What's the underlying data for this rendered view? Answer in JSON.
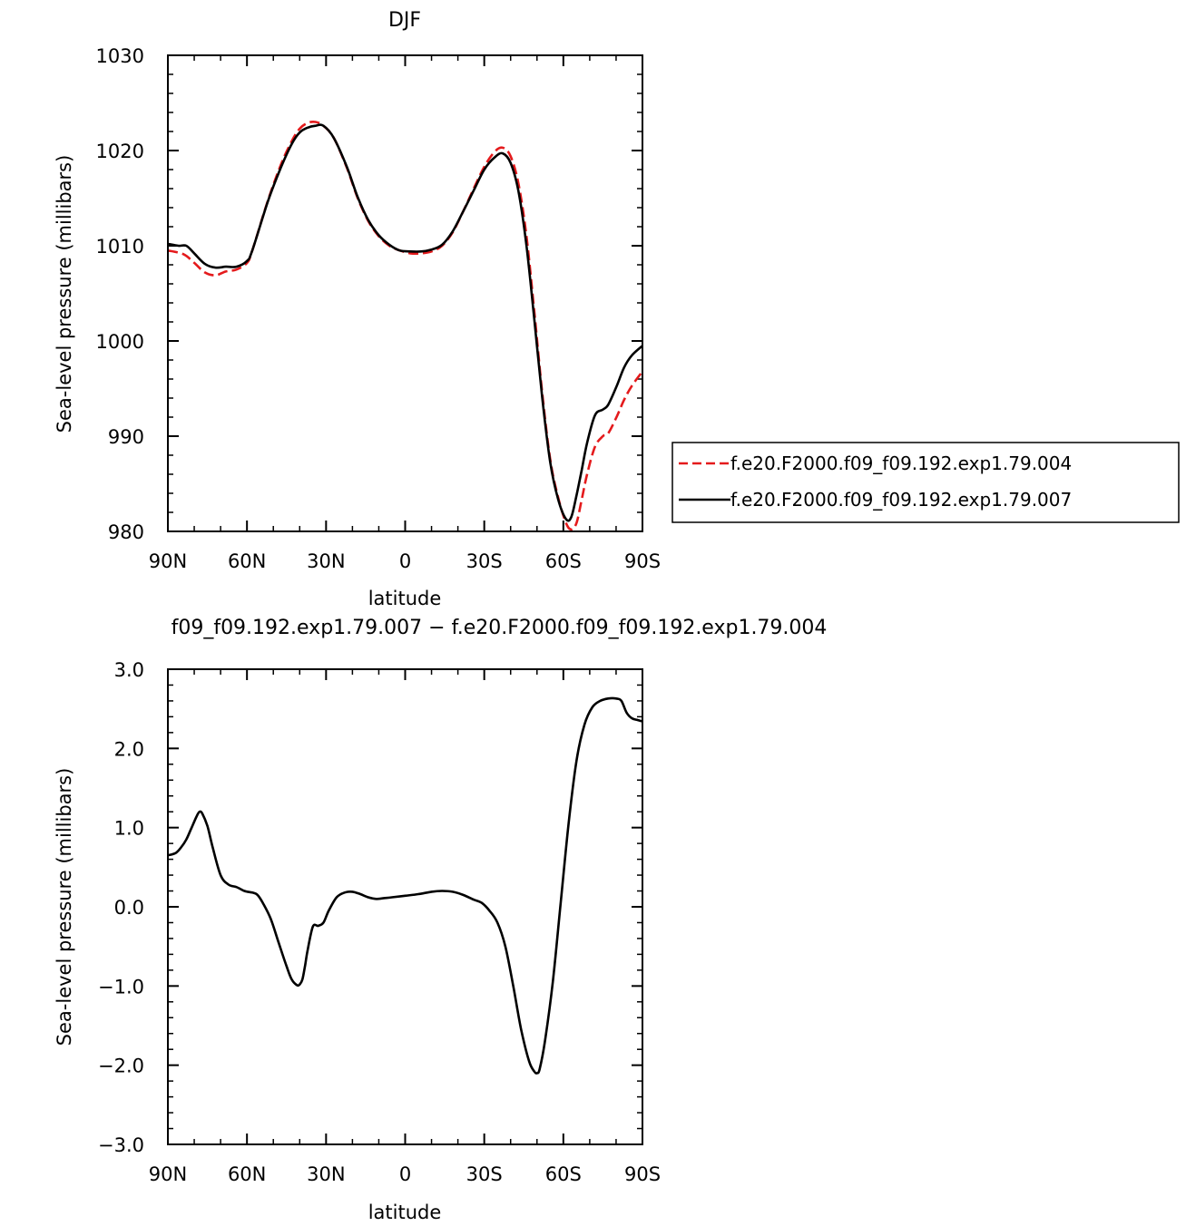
{
  "chart_data": [
    {
      "type": "line",
      "title": "DJF",
      "xlabel": "latitude",
      "ylabel": "Sea-level pressure (millibars)",
      "xlim": [
        90,
        -90
      ],
      "ylim": [
        980,
        1030
      ],
      "yticks": [
        980,
        990,
        1000,
        1010,
        1020,
        1030
      ],
      "ytick_labels": [
        "980",
        "990",
        "1000",
        "1010",
        "1020",
        "1030"
      ],
      "xticks": [
        90,
        60,
        30,
        0,
        -30,
        -60,
        -90
      ],
      "xtick_labels": [
        "90N",
        "60N",
        "30N",
        "0",
        "30S",
        "60S",
        "90S"
      ],
      "grid": false,
      "legend_position": "right",
      "series": [
        {
          "name": "f.e20.F2000.f09_f09.192.exp1.79.004",
          "color": "#e41a1c",
          "dash": "dashed",
          "x": [
            90,
            84,
            80,
            76,
            72,
            68,
            64,
            60,
            58,
            52,
            47,
            43,
            40,
            37,
            34,
            31,
            27,
            22,
            18,
            14,
            10,
            6,
            2,
            -2,
            -6,
            -10,
            -14,
            -18,
            -22,
            -26,
            -30,
            -34,
            -37,
            -40,
            -43,
            -46,
            -49,
            -52,
            -55,
            -58,
            -61,
            -63,
            -65,
            -67,
            -69,
            -72,
            -75,
            -77,
            -80,
            -83,
            -86,
            -90
          ],
          "y": [
            1009.5,
            1009.1,
            1008.2,
            1007.2,
            1006.9,
            1007.3,
            1007.5,
            1008.2,
            1009.5,
            1014.8,
            1018.6,
            1021.0,
            1022.3,
            1022.9,
            1023.0,
            1022.6,
            1021.3,
            1018.1,
            1015.0,
            1012.6,
            1011.0,
            1010.0,
            1009.5,
            1009.2,
            1009.2,
            1009.4,
            1010.0,
            1011.4,
            1013.6,
            1016.0,
            1018.3,
            1019.9,
            1020.3,
            1019.4,
            1016.5,
            1011.0,
            1003.0,
            994.5,
            987.6,
            983.6,
            980.9,
            980.2,
            980.9,
            983.4,
            986.0,
            988.9,
            990.0,
            990.3,
            991.9,
            993.8,
            995.3,
            996.8
          ]
        },
        {
          "name": "f.e20.F2000.f09_f09.192.exp1.79.007",
          "color": "#000000",
          "dash": "solid",
          "x": [
            90,
            86,
            83,
            80,
            76,
            72,
            68,
            64,
            60,
            58,
            52,
            47,
            43,
            40,
            37,
            34,
            31,
            27,
            22,
            18,
            14,
            10,
            6,
            2,
            -2,
            -6,
            -10,
            -14,
            -18,
            -22,
            -26,
            -30,
            -34,
            -37,
            -40,
            -43,
            -46,
            -49,
            -52,
            -55,
            -58,
            -61,
            -63,
            -65,
            -67,
            -69,
            -72,
            -75,
            -77,
            -80,
            -83,
            -86,
            -90
          ],
          "y": [
            1010.2,
            1010.0,
            1010.0,
            1009.2,
            1008.1,
            1007.7,
            1007.8,
            1007.8,
            1008.4,
            1009.5,
            1014.7,
            1018.3,
            1020.7,
            1021.9,
            1022.4,
            1022.6,
            1022.6,
            1021.3,
            1018.2,
            1015.1,
            1012.7,
            1011.1,
            1010.1,
            1009.5,
            1009.4,
            1009.4,
            1009.6,
            1010.1,
            1011.5,
            1013.6,
            1015.8,
            1018.0,
            1019.3,
            1019.7,
            1018.7,
            1015.7,
            1010.0,
            1002.2,
            994.0,
            987.3,
            983.4,
            981.3,
            981.5,
            983.8,
            986.5,
            989.3,
            992.2,
            992.8,
            993.3,
            995.1,
            997.2,
            998.5,
            999.5
          ]
        }
      ]
    },
    {
      "type": "line",
      "title": "f09_f09.192.exp1.79.007 − f.e20.F2000.f09_f09.192.exp1.79.004",
      "xlabel": "latitude",
      "ylabel": "Sea-level pressure (millibars)",
      "xlim": [
        90,
        -90
      ],
      "ylim": [
        -3.0,
        3.0
      ],
      "yticks": [
        -3.0,
        -2.0,
        -1.0,
        0.0,
        1.0,
        2.0,
        3.0
      ],
      "ytick_labels": [
        "−3.0",
        "−2.0",
        "−1.0",
        "0.0",
        "1.0",
        "2.0",
        "3.0"
      ],
      "xticks": [
        90,
        60,
        30,
        0,
        -30,
        -60,
        -90
      ],
      "xtick_labels": [
        "90N",
        "60N",
        "30N",
        "0",
        "30S",
        "60S",
        "90S"
      ],
      "grid": false,
      "series": [
        {
          "color": "#000000",
          "dash": "solid",
          "x": [
            90,
            87,
            85,
            83,
            81,
            79,
            78,
            77,
            75,
            73,
            70,
            67,
            64,
            61,
            58,
            56,
            54,
            51,
            48,
            45,
            43,
            41,
            40,
            39,
            38,
            37,
            35,
            33,
            31,
            29,
            26,
            23,
            20,
            17,
            14,
            11,
            8,
            5,
            0,
            -5,
            -10,
            -14,
            -18,
            -22,
            -26,
            -29,
            -32,
            -35,
            -38,
            -41,
            -44,
            -47,
            -49,
            -50,
            -51,
            -53,
            -56,
            -59,
            -62,
            -65,
            -68,
            -71,
            -74,
            -77,
            -80,
            -82,
            -84,
            -86,
            -88,
            -90
          ],
          "y": [
            0.65,
            0.68,
            0.75,
            0.85,
            1.0,
            1.15,
            1.2,
            1.18,
            1.02,
            0.75,
            0.4,
            0.28,
            0.25,
            0.2,
            0.18,
            0.15,
            0.05,
            -0.15,
            -0.45,
            -0.75,
            -0.92,
            -0.99,
            -0.98,
            -0.92,
            -0.75,
            -0.55,
            -0.25,
            -0.24,
            -0.2,
            -0.05,
            0.12,
            0.18,
            0.19,
            0.16,
            0.12,
            0.1,
            0.11,
            0.12,
            0.14,
            0.16,
            0.19,
            0.2,
            0.19,
            0.15,
            0.09,
            0.05,
            -0.05,
            -0.2,
            -0.5,
            -1.0,
            -1.55,
            -1.95,
            -2.08,
            -2.1,
            -2.05,
            -1.7,
            -0.95,
            0.05,
            1.05,
            1.85,
            2.3,
            2.52,
            2.6,
            2.63,
            2.63,
            2.6,
            2.45,
            2.38,
            2.36,
            2.34
          ]
        }
      ]
    }
  ]
}
